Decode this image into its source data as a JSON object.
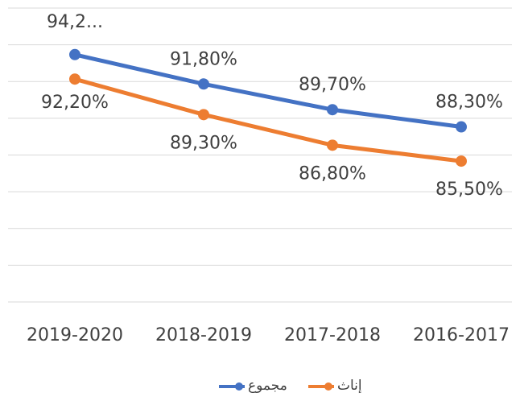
{
  "chart_data": {
    "type": "line",
    "categories": [
      "2019-2020",
      "2018-2019",
      "2017-2018",
      "2016-2017"
    ],
    "series": [
      {
        "name": "مجموع",
        "color": "#4472c4",
        "values": [
          94.2,
          91.8,
          89.7,
          88.3
        ],
        "value_labels": [
          "94,2...",
          "91,80%",
          "89,70%",
          "88,30%"
        ]
      },
      {
        "name": "إناث",
        "color": "#ed7d31",
        "values": [
          92.2,
          89.3,
          86.8,
          85.5
        ],
        "value_labels": [
          "92,20%",
          "89,30%",
          "86,80%",
          "85,50%"
        ]
      }
    ],
    "ylim": [
      74,
      98
    ],
    "yticks": [
      74,
      77,
      80,
      83,
      86,
      89,
      92,
      95,
      98
    ],
    "grid": true,
    "legend": "bottom"
  }
}
